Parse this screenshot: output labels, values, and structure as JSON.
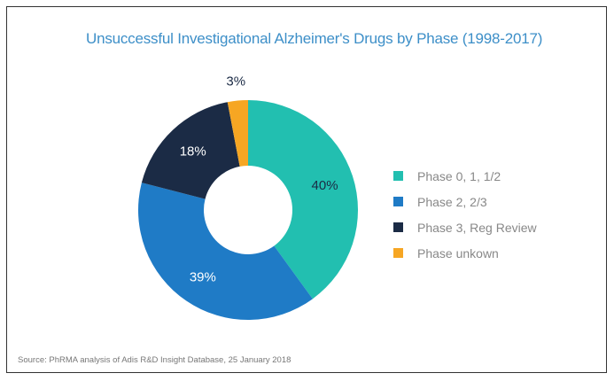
{
  "chart_data": {
    "type": "pie",
    "variant": "donut",
    "title": "Unsuccessful Investigational Alzheimer's Drugs by Phase (1998-2017)",
    "categories": [
      "Phase 0, 1, 1/2",
      "Phase 2, 2/3",
      "Phase 3, Reg Review",
      "Phase unkown"
    ],
    "values": [
      40,
      39,
      18,
      3
    ],
    "labels": [
      "40%",
      "39%",
      "18%",
      "3%"
    ],
    "colors": [
      "#22bfb0",
      "#1f7bc6",
      "#1b2b45",
      "#f6a623"
    ],
    "label_colors": [
      "#1b2b45",
      "#ffffff",
      "#ffffff",
      "#1b2b45"
    ],
    "legend_position": "right",
    "source": "Source: PhRMA analysis of Adis R&D Insight Database, 25 January 2018"
  }
}
